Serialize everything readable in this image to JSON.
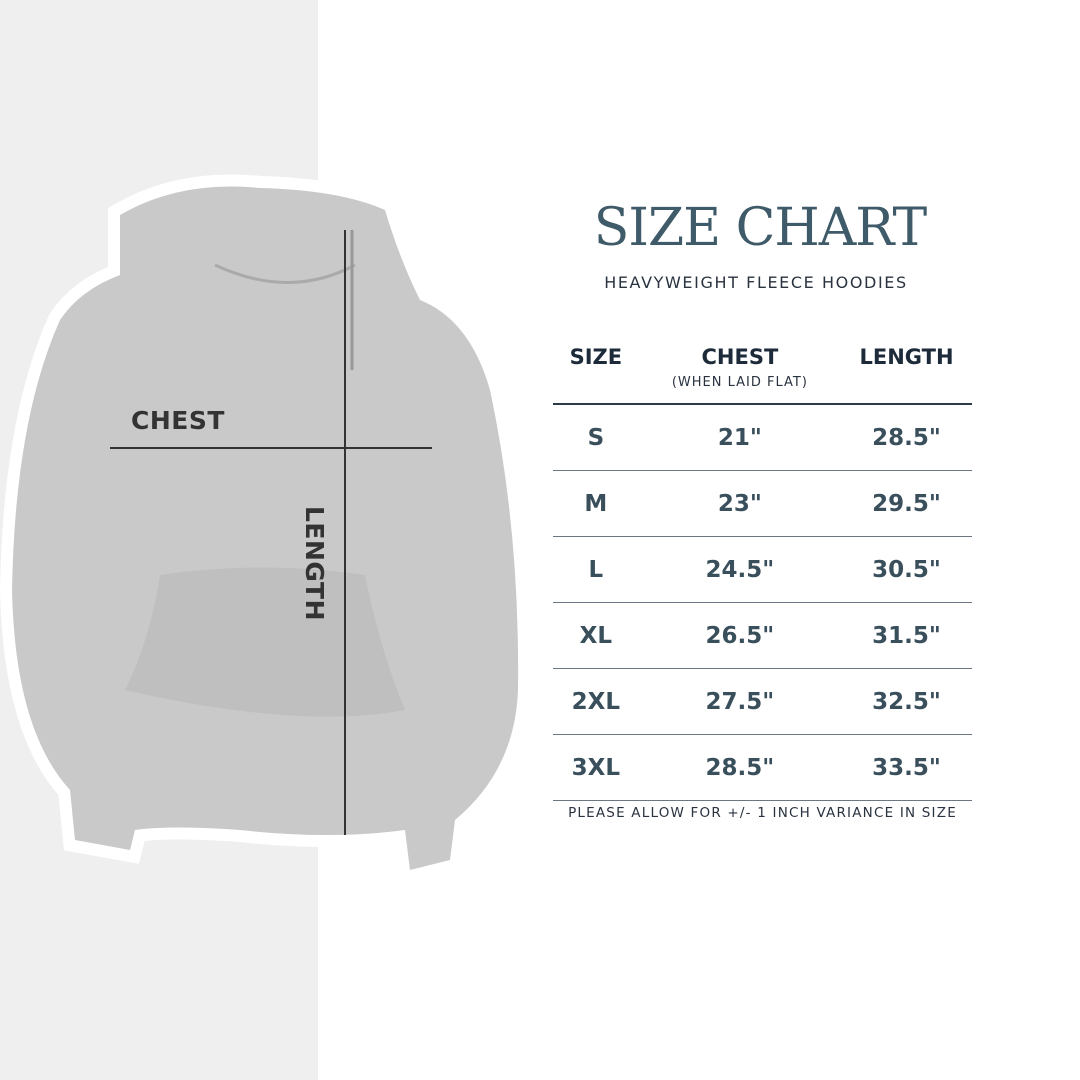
{
  "title": "SIZE CHART",
  "subtitle": "HEAVYWEIGHT FLEECE HOODIES",
  "image_labels": {
    "chest": "CHEST",
    "length": "LENGTH"
  },
  "table": {
    "headers": {
      "size": "SIZE",
      "chest": "CHEST",
      "chest_note": "(WHEN LAID FLAT)",
      "length": "LENGTH"
    },
    "rows": [
      {
        "size": "S",
        "chest": "21\"",
        "length": "28.5\""
      },
      {
        "size": "M",
        "chest": "23\"",
        "length": "29.5\""
      },
      {
        "size": "L",
        "chest": "24.5\"",
        "length": "30.5\""
      },
      {
        "size": "XL",
        "chest": "26.5\"",
        "length": "31.5\""
      },
      {
        "size": "2XL",
        "chest": "27.5\"",
        "length": "32.5\""
      },
      {
        "size": "3XL",
        "chest": "28.5\"",
        "length": "33.5\""
      }
    ]
  },
  "footnote": "PLEASE ALLOW FOR +/- 1 INCH VARIANCE IN SIZE",
  "colors": {
    "title": "#3f5a68",
    "header": "#1c2a3a",
    "values": "#3a4f5c",
    "hoodie": "#c9c9c9"
  }
}
